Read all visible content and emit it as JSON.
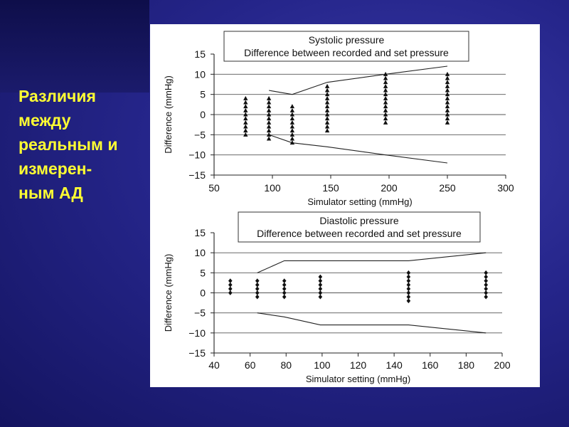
{
  "slide": {
    "text_lines": [
      "Различия",
      "между",
      "реальным  и",
      "измерен-",
      "ным  АД"
    ],
    "text_color": "#ffff33",
    "background_color": "#25258a"
  },
  "chart_data": [
    {
      "type": "scatter",
      "title": "Systolic pressure",
      "subtitle": "Difference between recorded and set pressure",
      "xlabel": "Simulator setting (mmHg)",
      "ylabel": "Difference (mmHg)",
      "xlim": [
        50,
        300
      ],
      "ylim": [
        -15,
        15
      ],
      "xticks": [
        50,
        100,
        150,
        200,
        250,
        300
      ],
      "yticks": [
        15,
        10,
        5,
        0,
        -5,
        -10,
        -15
      ],
      "gridlines_y": [
        10,
        5,
        0,
        -5,
        -10
      ],
      "marker": "triangle",
      "series": [
        {
          "x": 77,
          "values": [
            4,
            3,
            2,
            1,
            0,
            -1,
            -2,
            -3,
            -4,
            -5
          ]
        },
        {
          "x": 97,
          "values": [
            4,
            3,
            2,
            1,
            0,
            -1,
            -2,
            -3,
            -4,
            -5,
            -6
          ]
        },
        {
          "x": 117,
          "values": [
            2,
            1,
            0,
            -1,
            -2,
            -3,
            -4,
            -5,
            -6,
            -7
          ]
        },
        {
          "x": 147,
          "values": [
            7,
            6,
            5,
            4,
            3,
            2,
            1,
            0,
            -1,
            -2,
            -3,
            -4
          ]
        },
        {
          "x": 197,
          "values": [
            10,
            9,
            8,
            7,
            6,
            5,
            4,
            3,
            2,
            1,
            0,
            -1,
            -2
          ]
        },
        {
          "x": 250,
          "values": [
            10,
            9,
            8,
            7,
            6,
            5,
            4,
            3,
            2,
            1,
            0,
            -1,
            -2
          ]
        }
      ],
      "limit_lines": [
        {
          "x": [
            97,
            117,
            147,
            197,
            250
          ],
          "values": [
            6,
            5,
            8,
            10,
            12
          ]
        },
        {
          "x": [
            97,
            117,
            147,
            197,
            250
          ],
          "values": [
            -5,
            -7,
            -8,
            -10,
            -12
          ]
        }
      ]
    },
    {
      "type": "scatter",
      "title": "Diastolic pressure",
      "subtitle": "Difference between recorded and set pressure",
      "xlabel": "Simulator setting (mmHg)",
      "ylabel": "Difference (mmHg)",
      "xlim": [
        40,
        200
      ],
      "ylim": [
        -15,
        15
      ],
      "xticks": [
        40,
        60,
        80,
        100,
        120,
        140,
        160,
        180,
        200
      ],
      "yticks": [
        15,
        10,
        5,
        0,
        -5,
        -10,
        -15
      ],
      "gridlines_y": [
        10,
        5,
        0,
        -5,
        -10
      ],
      "marker": "diamond",
      "series": [
        {
          "x": 49,
          "values": [
            3,
            2,
            1,
            0
          ]
        },
        {
          "x": 64,
          "values": [
            3,
            2,
            1,
            0,
            -1
          ]
        },
        {
          "x": 79,
          "values": [
            3,
            2,
            1,
            0,
            -1
          ]
        },
        {
          "x": 99,
          "values": [
            4,
            3,
            2,
            1,
            0,
            -1
          ]
        },
        {
          "x": 148,
          "values": [
            5,
            4,
            3,
            2,
            1,
            0,
            -1,
            -2
          ]
        },
        {
          "x": 191,
          "values": [
            5,
            4,
            3,
            2,
            1,
            0,
            -1
          ]
        }
      ],
      "limit_lines": [
        {
          "x": [
            64,
            79,
            99,
            148,
            191
          ],
          "values": [
            5,
            8,
            8,
            8,
            10
          ]
        },
        {
          "x": [
            64,
            79,
            99,
            148,
            191
          ],
          "values": [
            -5,
            -6,
            -8,
            -8,
            -10
          ]
        }
      ]
    }
  ]
}
